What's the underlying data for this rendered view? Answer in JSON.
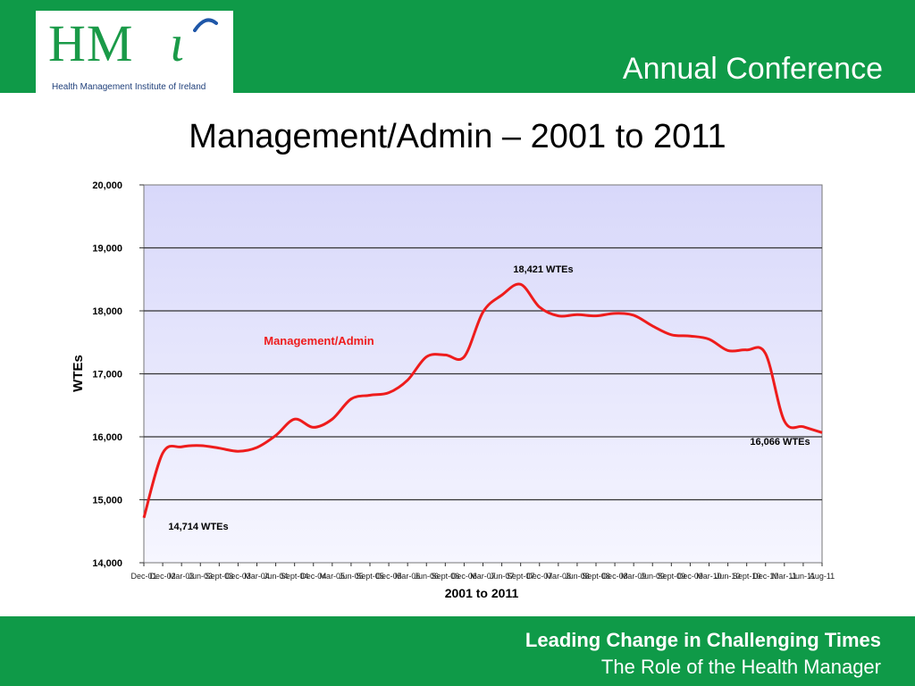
{
  "header": {
    "logo_text": "HMi",
    "logo_subtitle": "Health Management Institute of Ireland",
    "conference": "Annual Conference"
  },
  "slide": {
    "title": "Management/Admin – 2001 to 2011"
  },
  "footer": {
    "line1": "Leading Change in Challenging Times",
    "line2": "The Role of the Health Manager"
  },
  "colors": {
    "brand_green": "#0f9a48",
    "series_red": "#ee1c1c",
    "plot_top": "#d8d8fa",
    "plot_bottom": "#f6f6ff"
  },
  "chart_data": {
    "type": "line",
    "title": "",
    "xlabel": "2001 to 2011",
    "ylabel": "WTEs",
    "ylim": [
      14000,
      20000
    ],
    "yticks": [
      "14,000",
      "15,000",
      "16,000",
      "17,000",
      "18,000",
      "19,000",
      "20,000"
    ],
    "grid": true,
    "categories": [
      "Dec-01",
      "Dec-02",
      "Mar-03",
      "Jun-03",
      "Sept-03",
      "Dec-03",
      "Mar-04",
      "Jun-04",
      "Sept-04",
      "Dec-04",
      "Mar-05",
      "Jun-05",
      "Sept-05",
      "Dec-05",
      "Mar-06",
      "Jun-06",
      "Sept-06",
      "Dec-06",
      "Mar-07",
      "Jun-07",
      "Sept-07",
      "Dec-07",
      "Mar-08",
      "Jun-08",
      "Sept-08",
      "Dec-08",
      "Mar-09",
      "Jun-09",
      "Sept-09",
      "Dec-09",
      "Mar-10",
      "Jun-10",
      "Sept-10",
      "Dec-10",
      "Mar-11",
      "Jun-11",
      "Aug-11"
    ],
    "series": [
      {
        "name": "Management/Admin",
        "values": [
          14714,
          15740,
          15840,
          15860,
          15820,
          15770,
          15830,
          16020,
          16280,
          16150,
          16280,
          16600,
          16660,
          16700,
          16900,
          17270,
          17300,
          17270,
          17980,
          18250,
          18421,
          18060,
          17920,
          17940,
          17920,
          17960,
          17930,
          17760,
          17620,
          17600,
          17550,
          17370,
          17380,
          17320,
          16250,
          16160,
          16066
        ]
      }
    ],
    "annotations": [
      {
        "text": "18,421 WTEs",
        "at_index": 20
      },
      {
        "text": "14,714 WTEs",
        "at_index": 0
      },
      {
        "text": "16,066 WTEs",
        "at_index": 36
      },
      {
        "text": "Management/Admin",
        "kind": "series-label"
      }
    ]
  }
}
